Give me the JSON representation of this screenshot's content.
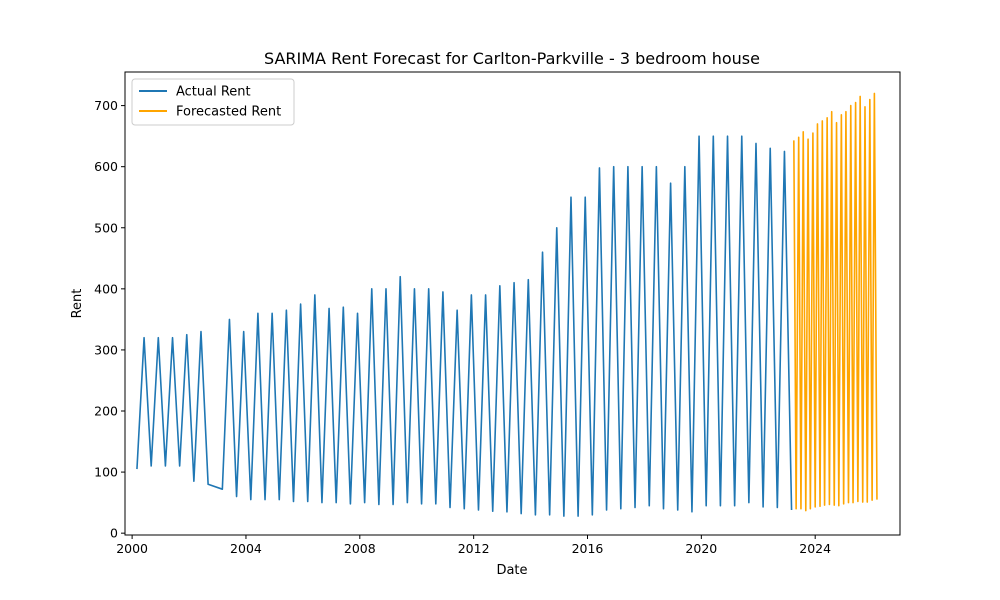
{
  "chart_data": {
    "type": "line",
    "title": "SARIMA Rent Forecast for Carlton-Parkville - 3 bedroom house",
    "xlabel": "Date",
    "ylabel": "Rent",
    "xlim": [
      1999.75,
      2026.98
    ],
    "ylim": [
      -3,
      755
    ],
    "x_ticks": [
      2000,
      2004,
      2008,
      2012,
      2016,
      2020,
      2024
    ],
    "y_ticks": [
      0,
      100,
      200,
      300,
      400,
      500,
      600,
      700
    ],
    "grid": false,
    "legend_position": "top-left",
    "series": [
      {
        "name": "Actual Rent",
        "color": "#1f77b4",
        "x": [
          2000.17,
          2000.42,
          2000.67,
          2000.92,
          2001.17,
          2001.42,
          2001.67,
          2001.92,
          2002.17,
          2002.42,
          2002.67,
          2003.17,
          2003.42,
          2003.67,
          2003.92,
          2004.17,
          2004.42,
          2004.67,
          2004.92,
          2005.17,
          2005.42,
          2005.67,
          2005.92,
          2006.17,
          2006.42,
          2006.67,
          2006.92,
          2007.17,
          2007.42,
          2007.67,
          2007.92,
          2008.17,
          2008.42,
          2008.67,
          2008.92,
          2009.17,
          2009.42,
          2009.67,
          2009.92,
          2010.17,
          2010.42,
          2010.67,
          2010.92,
          2011.17,
          2011.42,
          2011.67,
          2011.92,
          2012.17,
          2012.42,
          2012.67,
          2012.92,
          2013.17,
          2013.42,
          2013.67,
          2013.92,
          2014.17,
          2014.42,
          2014.67,
          2014.92,
          2015.17,
          2015.42,
          2015.67,
          2015.92,
          2016.17,
          2016.42,
          2016.67,
          2016.92,
          2017.17,
          2017.42,
          2017.67,
          2017.92,
          2018.17,
          2018.42,
          2018.67,
          2018.92,
          2019.17,
          2019.42,
          2019.67,
          2019.92,
          2020.17,
          2020.42,
          2020.67,
          2020.92,
          2021.17,
          2021.42,
          2021.67,
          2021.92,
          2022.17,
          2022.42,
          2022.67,
          2022.92,
          2023.17
        ],
        "values": [
          105,
          320,
          110,
          320,
          110,
          320,
          110,
          325,
          85,
          330,
          80,
          72,
          350,
          60,
          330,
          55,
          360,
          55,
          360,
          55,
          365,
          52,
          375,
          52,
          390,
          50,
          368,
          50,
          370,
          48,
          360,
          50,
          400,
          47,
          400,
          47,
          420,
          50,
          400,
          48,
          400,
          48,
          395,
          42,
          365,
          40,
          390,
          38,
          390,
          36,
          405,
          35,
          410,
          32,
          415,
          30,
          460,
          30,
          500,
          28,
          550,
          28,
          550,
          30,
          598,
          38,
          600,
          40,
          600,
          42,
          600,
          45,
          600,
          40,
          573,
          38,
          600,
          35,
          650,
          45,
          650,
          45,
          650,
          45,
          650,
          50,
          638,
          43,
          630,
          42,
          625,
          38
        ]
      },
      {
        "name": "Forecasted Rent",
        "color": "#ffa500",
        "x": [
          2023.25,
          2023.33,
          2023.42,
          2023.5,
          2023.58,
          2023.67,
          2023.75,
          2023.83,
          2023.92,
          2024.0,
          2024.08,
          2024.17,
          2024.25,
          2024.33,
          2024.42,
          2024.5,
          2024.58,
          2024.67,
          2024.75,
          2024.83,
          2024.92,
          2025.0,
          2025.08,
          2025.17,
          2025.25,
          2025.33,
          2025.42,
          2025.5,
          2025.58,
          2025.67,
          2025.75,
          2025.83,
          2025.92,
          2026.0,
          2026.08,
          2026.17
        ],
        "values": [
          643,
          40,
          648,
          40,
          657,
          37,
          645,
          40,
          655,
          43,
          670,
          44,
          675,
          46,
          680,
          47,
          690,
          46,
          672,
          45,
          685,
          48,
          690,
          50,
          700,
          50,
          705,
          52,
          715,
          51,
          698,
          51,
          710,
          54,
          720,
          55
        ]
      }
    ]
  }
}
